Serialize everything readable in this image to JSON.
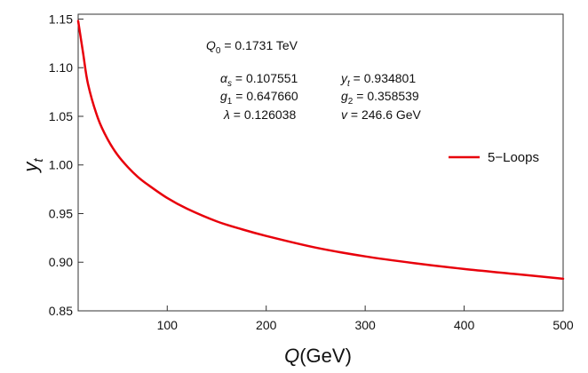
{
  "chart_data": {
    "type": "line",
    "xlabel": {
      "main": "Q",
      "unit": "(GeV)"
    },
    "ylabel": {
      "main": "y",
      "sub": "t"
    },
    "xlim": [
      10,
      500
    ],
    "ylim": [
      0.85,
      1.155
    ],
    "xticks": [
      100,
      200,
      300,
      400,
      500
    ],
    "yticks": [
      0.85,
      0.9,
      0.95,
      1.0,
      1.05,
      1.1,
      1.15
    ],
    "ytick_labels": [
      "0.85",
      "0.90",
      "0.95",
      "1.00",
      "1.05",
      "1.10",
      "1.15"
    ],
    "grid": false,
    "legend_position": "right",
    "annotations": {
      "q0": {
        "lhs": "Q",
        "sub": "0",
        "rhs": " = 0.1731 TeV"
      },
      "alpha_s": {
        "lhs": "α",
        "sub": "s",
        "rhs": " = 0.107551"
      },
      "y_t": {
        "lhs": "y",
        "sub": "t",
        "rhs": " = 0.934801"
      },
      "g1": {
        "lhs": "g",
        "sub": "1",
        "rhs": " = 0.647660"
      },
      "g2": {
        "lhs": "g",
        "sub": "2",
        "rhs": " = 0.358539"
      },
      "lambda": {
        "lhs": "λ",
        "rhs": " = 0.126038"
      },
      "v": {
        "lhs": "v",
        "rhs": " = 246.6 GeV"
      }
    },
    "series": [
      {
        "name": "5−Loops",
        "color": "#e8000b",
        "x": [
          10,
          15,
          20,
          30,
          40,
          50,
          60,
          70,
          80,
          100,
          120,
          150,
          175,
          200,
          250,
          300,
          350,
          400,
          450,
          500
        ],
        "y": [
          1.148,
          1.115,
          1.083,
          1.048,
          1.026,
          1.01,
          0.998,
          0.988,
          0.98,
          0.966,
          0.955,
          0.942,
          0.934,
          0.927,
          0.915,
          0.906,
          0.899,
          0.893,
          0.888,
          0.883
        ]
      }
    ]
  }
}
